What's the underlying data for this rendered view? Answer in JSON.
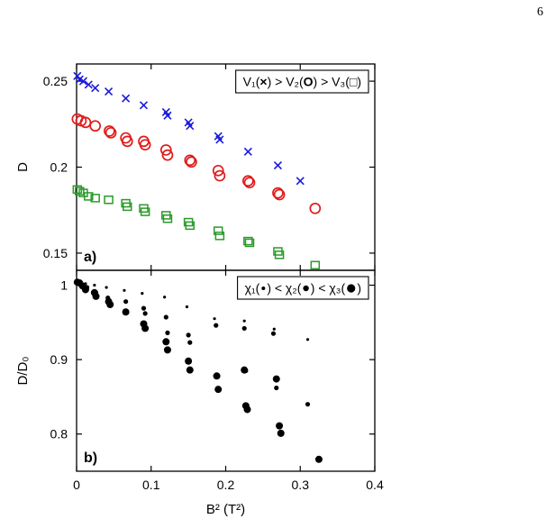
{
  "page_number": "6",
  "chart_data": [
    {
      "type": "scatter",
      "panel_label": "a)",
      "ylabel": "D",
      "xlim": [
        0,
        0.4
      ],
      "ylim": [
        0.14,
        0.26
      ],
      "y_ticks": [
        0.15,
        0.2,
        0.25
      ],
      "y_tick_labels": [
        "0.15",
        "0.2",
        "0.25"
      ],
      "legend": {
        "placement": "top-right",
        "parts": [
          {
            "text": "V₁(",
            "color": "#000000"
          },
          {
            "text": "×",
            "color": "#1a1adb"
          },
          {
            "text": ") > V₂(",
            "color": "#000000"
          },
          {
            "text": "O",
            "color": "#e01b1b"
          },
          {
            "text": ") > V₃(",
            "color": "#000000"
          },
          {
            "text": "□",
            "color": "#2b9a2b"
          },
          {
            "text": ")",
            "color": "#000000"
          }
        ]
      },
      "series": [
        {
          "name": "V₁",
          "marker": "x",
          "color": "#1a1adb",
          "points": [
            [
              0.001,
              0.253
            ],
            [
              0.004,
              0.251
            ],
            [
              0.009,
              0.25
            ],
            [
              0.016,
              0.248
            ],
            [
              0.025,
              0.246
            ],
            [
              0.043,
              0.244
            ],
            [
              0.066,
              0.24
            ],
            [
              0.09,
              0.236
            ],
            [
              0.12,
              0.232
            ],
            [
              0.122,
              0.23
            ],
            [
              0.15,
              0.226
            ],
            [
              0.152,
              0.224
            ],
            [
              0.19,
              0.218
            ],
            [
              0.192,
              0.216
            ],
            [
              0.23,
              0.209
            ],
            [
              0.27,
              0.201
            ],
            [
              0.3,
              0.192
            ]
          ]
        },
        {
          "name": "V₂",
          "marker": "o",
          "color": "#e01b1b",
          "points": [
            [
              0.001,
              0.228
            ],
            [
              0.006,
              0.227
            ],
            [
              0.012,
              0.226
            ],
            [
              0.025,
              0.224
            ],
            [
              0.044,
              0.221
            ],
            [
              0.046,
              0.22
            ],
            [
              0.066,
              0.217
            ],
            [
              0.068,
              0.215
            ],
            [
              0.09,
              0.215
            ],
            [
              0.092,
              0.213
            ],
            [
              0.12,
              0.21
            ],
            [
              0.122,
              0.207
            ],
            [
              0.152,
              0.204
            ],
            [
              0.154,
              0.203
            ],
            [
              0.19,
              0.198
            ],
            [
              0.192,
              0.195
            ],
            [
              0.23,
              0.192
            ],
            [
              0.232,
              0.191
            ],
            [
              0.27,
              0.185
            ],
            [
              0.272,
              0.184
            ],
            [
              0.32,
              0.176
            ]
          ]
        },
        {
          "name": "V₃",
          "marker": "s",
          "color": "#2b9a2b",
          "points": [
            [
              0.001,
              0.187
            ],
            [
              0.004,
              0.186
            ],
            [
              0.009,
              0.185
            ],
            [
              0.016,
              0.183
            ],
            [
              0.025,
              0.182
            ],
            [
              0.043,
              0.181
            ],
            [
              0.066,
              0.179
            ],
            [
              0.068,
              0.177
            ],
            [
              0.09,
              0.176
            ],
            [
              0.092,
              0.174
            ],
            [
              0.12,
              0.172
            ],
            [
              0.122,
              0.17
            ],
            [
              0.15,
              0.168
            ],
            [
              0.152,
              0.166
            ],
            [
              0.19,
              0.163
            ],
            [
              0.192,
              0.16
            ],
            [
              0.23,
              0.157
            ],
            [
              0.232,
              0.156
            ],
            [
              0.27,
              0.151
            ],
            [
              0.272,
              0.149
            ],
            [
              0.32,
              0.143
            ]
          ]
        }
      ]
    },
    {
      "type": "scatter",
      "panel_label": "b)",
      "xlabel": "B² (T²)",
      "ylabel": "D/D₀",
      "xlim": [
        0,
        0.4
      ],
      "ylim": [
        0.75,
        1.02
      ],
      "x_ticks": [
        0,
        0.1,
        0.2,
        0.3,
        0.4
      ],
      "x_tick_labels": [
        "0",
        "0.1",
        "0.2",
        "0.3",
        "0.4"
      ],
      "y_ticks": [
        0.8,
        0.9,
        1
      ],
      "y_tick_labels": [
        "0.8",
        "0.9",
        "1"
      ],
      "legend": {
        "placement": "top-right",
        "parts": [
          {
            "text": "χ₁(",
            "color": "#000000"
          },
          {
            "text": "•",
            "color": "#000000",
            "dot": 2
          },
          {
            "text": ") < χ₂(",
            "color": "#000000"
          },
          {
            "text": "•",
            "color": "#000000",
            "dot": 3.2
          },
          {
            "text": ") < χ₃(",
            "color": "#000000"
          },
          {
            "text": "•",
            "color": "#000000",
            "dot": 4.6
          },
          {
            "text": ")",
            "color": "#000000"
          }
        ]
      },
      "series": [
        {
          "name": "χ₁",
          "marker": "dot",
          "color": "#000000",
          "size": 1.6,
          "points": [
            [
              0.001,
              1.005
            ],
            [
              0.005,
              1.004
            ],
            [
              0.012,
              1.002
            ],
            [
              0.024,
              1.0
            ],
            [
              0.04,
              0.997
            ],
            [
              0.064,
              0.993
            ],
            [
              0.088,
              0.989
            ],
            [
              0.118,
              0.984
            ],
            [
              0.148,
              0.971
            ],
            [
              0.185,
              0.955
            ],
            [
              0.225,
              0.952
            ],
            [
              0.265,
              0.941
            ],
            [
              0.31,
              0.927
            ]
          ]
        },
        {
          "name": "χ₂",
          "marker": "dot",
          "color": "#000000",
          "size": 2.6,
          "points": [
            [
              0.002,
              1.004
            ],
            [
              0.006,
              1.0
            ],
            [
              0.014,
              0.997
            ],
            [
              0.026,
              0.99
            ],
            [
              0.042,
              0.983
            ],
            [
              0.066,
              0.978
            ],
            [
              0.09,
              0.969
            ],
            [
              0.092,
              0.962
            ],
            [
              0.12,
              0.957
            ],
            [
              0.122,
              0.936
            ],
            [
              0.15,
              0.933
            ],
            [
              0.152,
              0.923
            ],
            [
              0.187,
              0.946
            ],
            [
              0.225,
              0.942
            ],
            [
              0.227,
              0.885
            ],
            [
              0.264,
              0.935
            ],
            [
              0.268,
              0.862
            ],
            [
              0.272,
              0.81
            ],
            [
              0.31,
              0.84
            ]
          ]
        },
        {
          "name": "χ₃",
          "marker": "dot",
          "color": "#000000",
          "size": 4.0,
          "points": [
            [
              0.001,
              1.004
            ],
            [
              0.004,
              1.003
            ],
            [
              0.008,
              0.999
            ],
            [
              0.012,
              0.994
            ],
            [
              0.024,
              0.99
            ],
            [
              0.026,
              0.985
            ],
            [
              0.043,
              0.978
            ],
            [
              0.045,
              0.974
            ],
            [
              0.066,
              0.964
            ],
            [
              0.09,
              0.948
            ],
            [
              0.092,
              0.942
            ],
            [
              0.12,
              0.924
            ],
            [
              0.122,
              0.913
            ],
            [
              0.15,
              0.898
            ],
            [
              0.152,
              0.886
            ],
            [
              0.188,
              0.878
            ],
            [
              0.19,
              0.86
            ],
            [
              0.225,
              0.886
            ],
            [
              0.227,
              0.838
            ],
            [
              0.229,
              0.833
            ],
            [
              0.268,
              0.874
            ],
            [
              0.272,
              0.811
            ],
            [
              0.274,
              0.801
            ],
            [
              0.325,
              0.766
            ]
          ]
        }
      ]
    }
  ]
}
